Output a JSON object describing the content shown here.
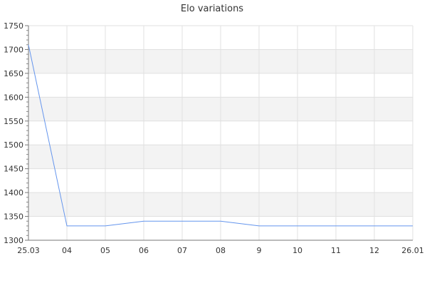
{
  "chart_data": {
    "type": "line",
    "title": "Elo variations",
    "xlabel": "",
    "ylabel": "",
    "categories": [
      "25.03",
      "04",
      "05",
      "06",
      "07",
      "08",
      "9",
      "10",
      "11",
      "12",
      "26.01"
    ],
    "series": [
      {
        "values": [
          1710,
          1330,
          1330,
          1340,
          1340,
          1340,
          1330,
          1330,
          1330,
          1330,
          1330
        ],
        "color": "#6495ed"
      }
    ],
    "ylim": [
      1300,
      1750
    ],
    "yticks": [
      1300,
      1350,
      1400,
      1450,
      1500,
      1550,
      1600,
      1650,
      1700,
      1750
    ],
    "grid": true,
    "band_color": "#f3f3f3"
  }
}
